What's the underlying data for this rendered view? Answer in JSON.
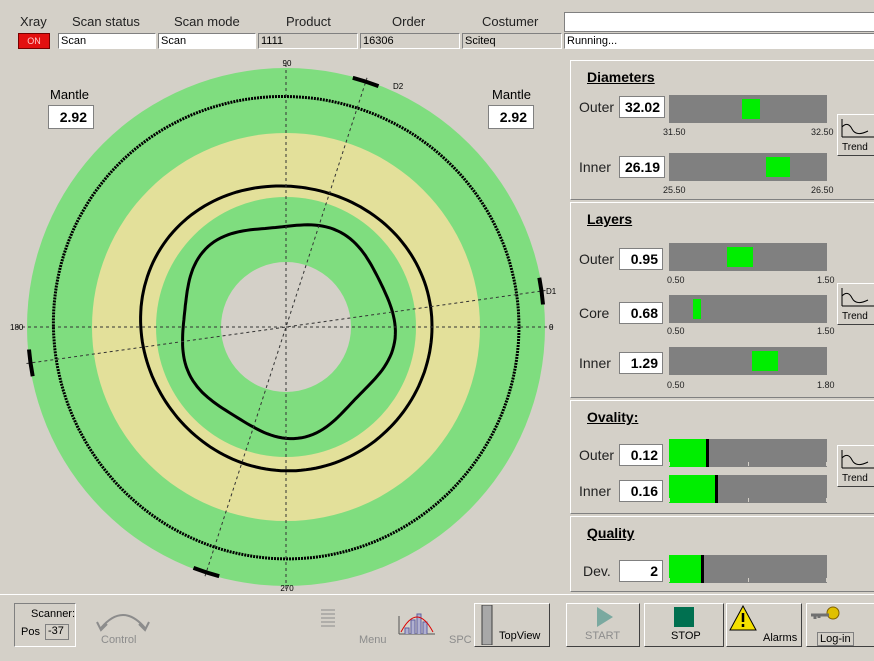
{
  "header": {
    "labels": {
      "xray": "Xray",
      "scan_status": "Scan status",
      "scan_mode": "Scan mode",
      "product": "Product",
      "order": "Order",
      "customer": "Costumer"
    },
    "xray_indicator": "ON",
    "scan_status": "Scan",
    "scan_mode": "Scan",
    "product": "1111",
    "order": "16306",
    "customer": "Sciteq",
    "message": "",
    "status_text": "Running..."
  },
  "plot": {
    "angle_labels": {
      "top": "90",
      "bottom": "270",
      "left": "180",
      "right": "0"
    },
    "marker_labels": {
      "d1": "D1",
      "d2": "D2"
    },
    "mantle_left": {
      "label": "Mantle",
      "value": "2.92"
    },
    "mantle_right": {
      "label": "Mantle",
      "value": "2.92"
    },
    "colors": {
      "green": "#7fdd7f",
      "yellow": "#e3e09a",
      "hole": "#d4d0c8"
    }
  },
  "diameters": {
    "title": "Diameters",
    "outer": {
      "label": "Outer",
      "value": "32.02",
      "min": "31.50",
      "max": "32.50",
      "level": 0.52
    },
    "inner": {
      "label": "Inner",
      "value": "26.19",
      "min": "25.50",
      "max": "26.50",
      "level": 0.69
    },
    "trend_label": "Trend"
  },
  "layers": {
    "title": "Layers",
    "outer": {
      "label": "Outer",
      "value": "0.95",
      "min": "0.50",
      "max": "1.50",
      "level": 0.45
    },
    "core": {
      "label": "Core",
      "value": "0.68",
      "min": "0.50",
      "max": "1.50",
      "level": 0.18
    },
    "inner": {
      "label": "Inner",
      "value": "1.29",
      "min": "0.50",
      "max": "1.80",
      "level": 0.61
    },
    "trend_label": "Trend"
  },
  "ovality": {
    "title": "Ovality:",
    "outer": {
      "label": "Outer",
      "value": "0.12",
      "level": 0.25
    },
    "inner": {
      "label": "Inner",
      "value": "0.16",
      "level": 0.31
    },
    "trend_label": "Trend"
  },
  "quality": {
    "title": "Quality",
    "dev": {
      "label": "Dev.",
      "value": "2",
      "level": 0.22
    }
  },
  "toolbar": {
    "scanner_label": "Scanner:",
    "pos_label": "Pos",
    "pos_value": "-37",
    "control": "Control",
    "menu": "Menu",
    "spc": "SPC",
    "topview": "TopView",
    "start": "START",
    "stop": "STOP",
    "alarms": "Alarms",
    "login": "Log-in"
  }
}
